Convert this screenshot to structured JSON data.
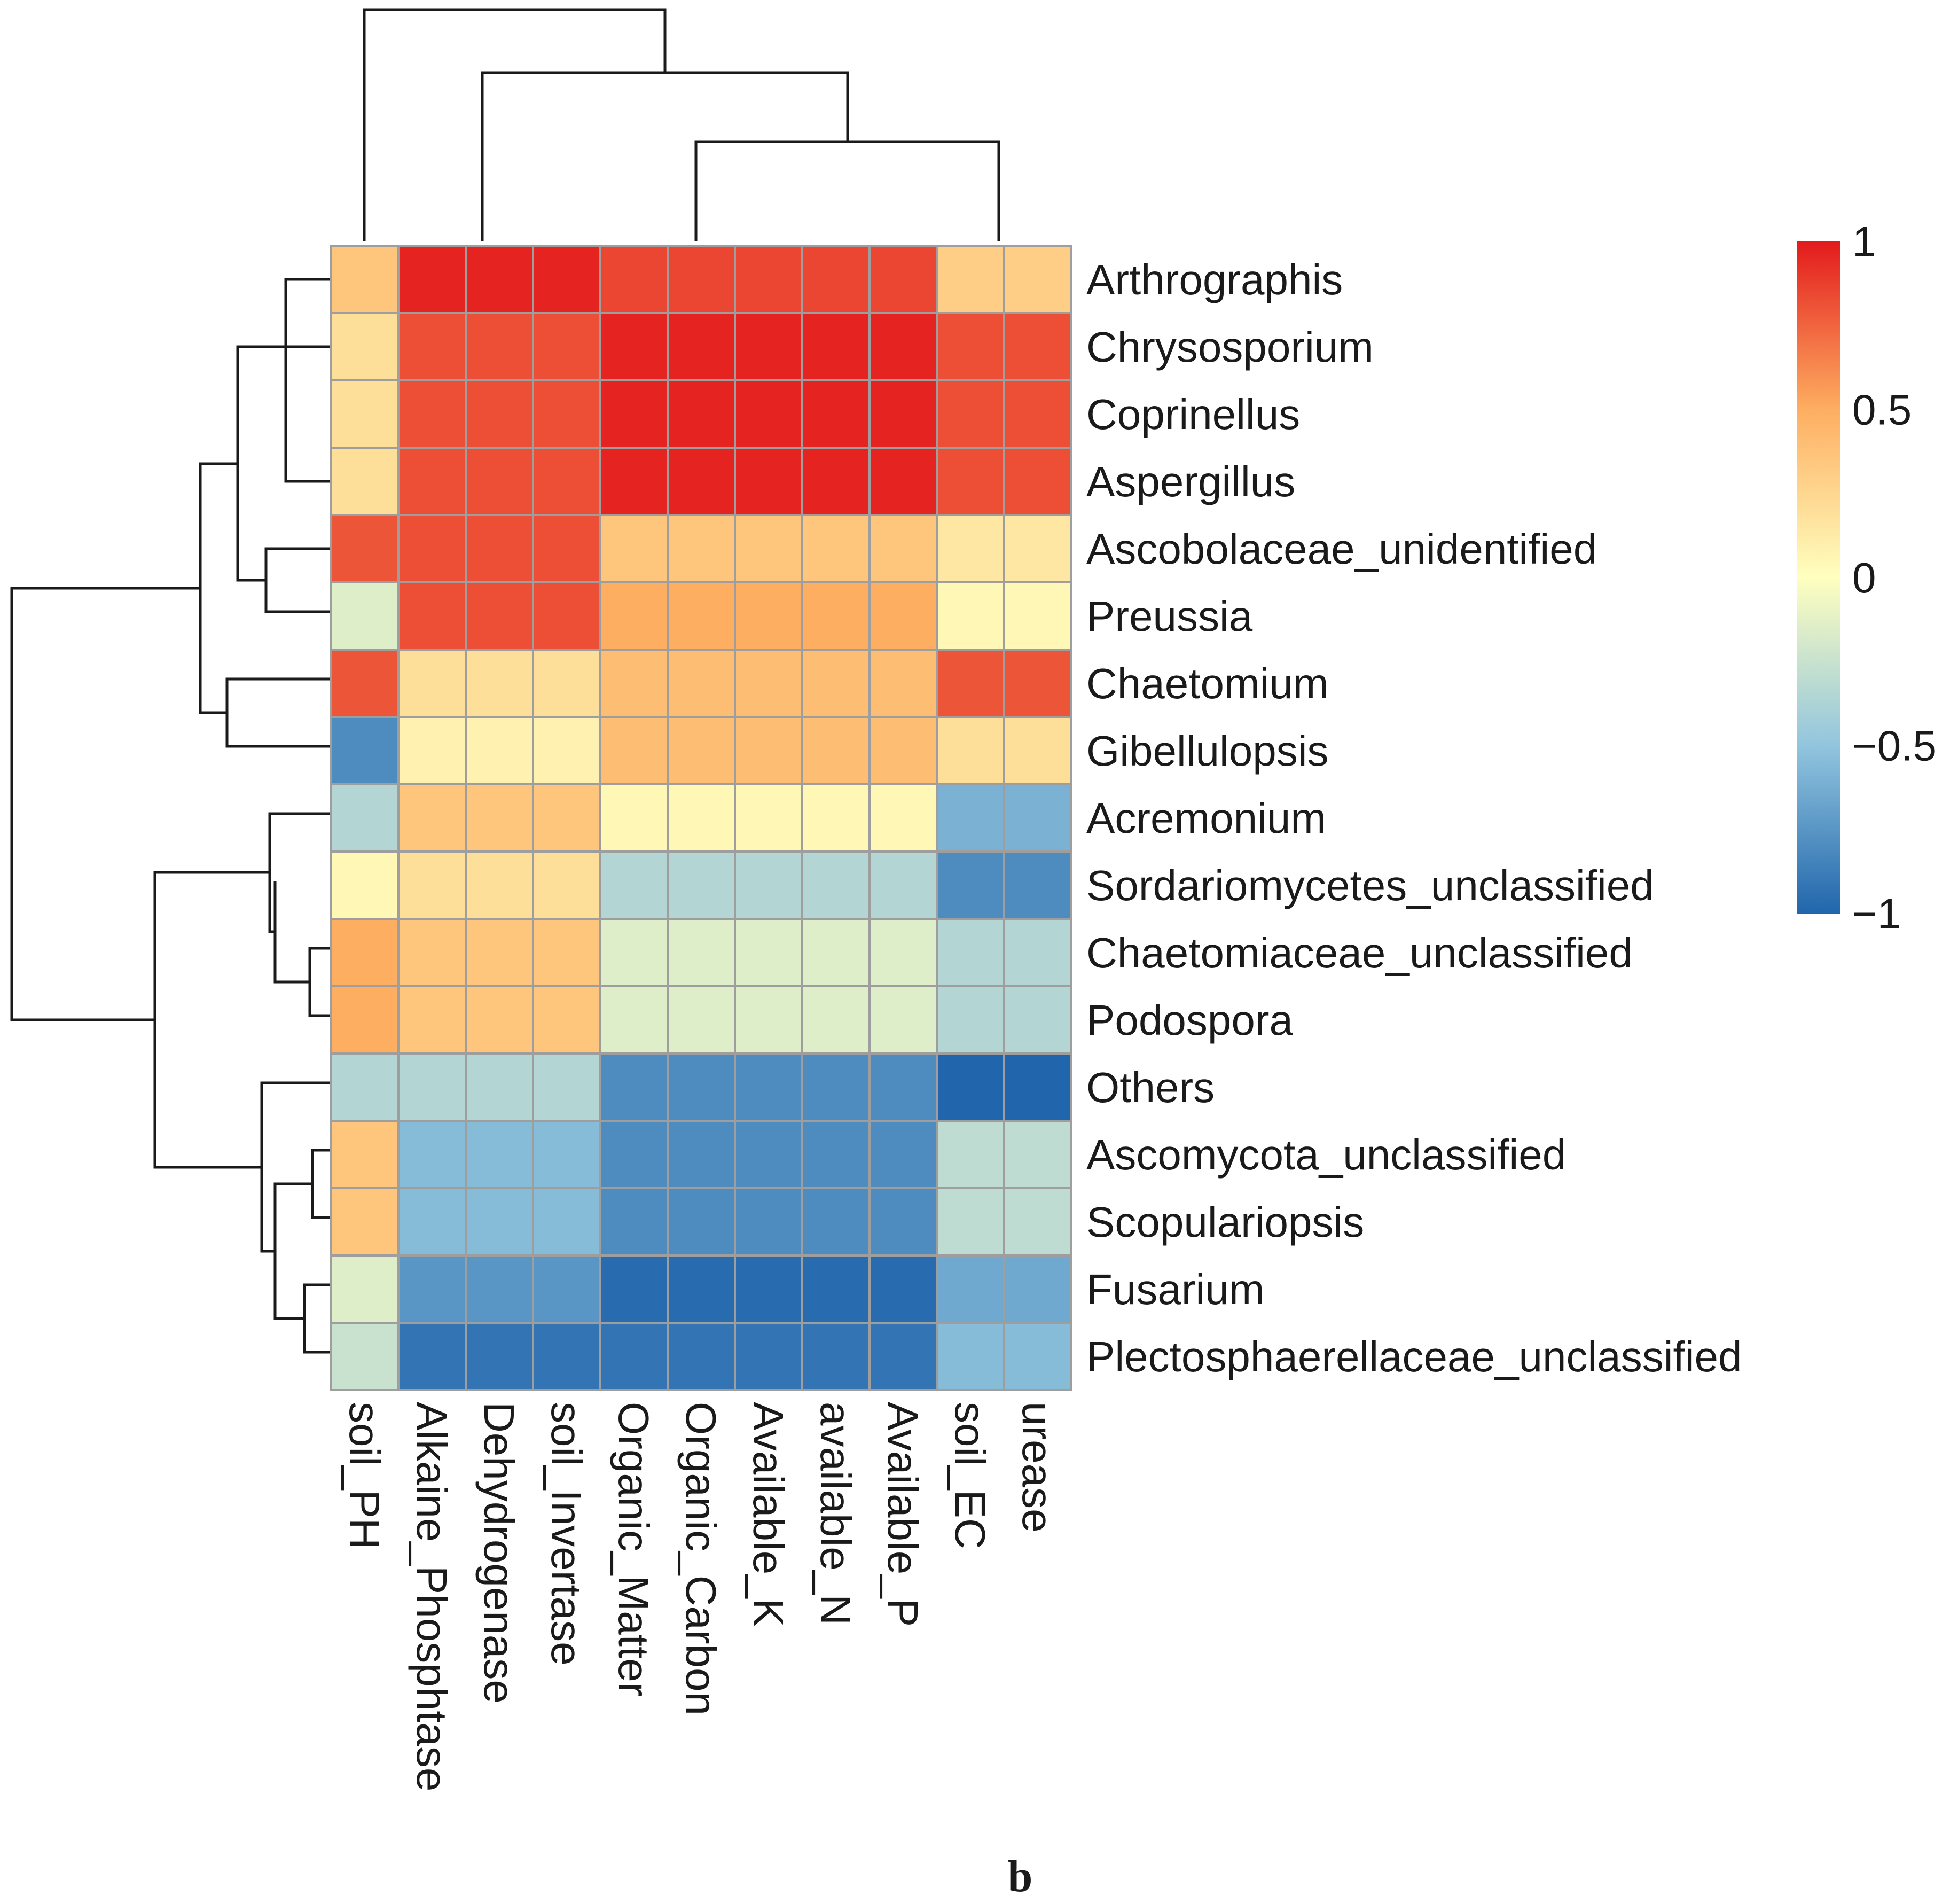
{
  "chart_data": {
    "type": "heatmap",
    "panel_label": "b",
    "columns": [
      "soil_PH",
      "Alkaine_Phosphtase",
      "Dehydrogenase",
      "soil_Invertase",
      "Organic_Matter",
      "Organic_Carbon",
      "Available_K",
      "available_N",
      "Available_P",
      "soil_EC",
      "urease"
    ],
    "rows": [
      "Arthrographis",
      "Chrysosporium",
      "Coprinellus",
      "Aspergillus",
      "Ascobolaceae_unidentified",
      "Preussia",
      "Chaetomium",
      "Gibellulopsis",
      "Acremonium",
      "Sordariomycetes_unclassified",
      "Chaetomiaceae_unclassified",
      "Podospora",
      "Others",
      "Ascomycota_unclassified",
      "Scopulariopsis",
      "Fusarium",
      "Plectosphaerellaceae_unclassified"
    ],
    "values": [
      [
        0.35,
        0.97,
        0.97,
        0.97,
        0.85,
        0.85,
        0.85,
        0.85,
        0.85,
        0.3,
        0.3
      ],
      [
        0.2,
        0.82,
        0.82,
        0.82,
        0.97,
        0.97,
        0.97,
        0.97,
        0.97,
        0.82,
        0.82
      ],
      [
        0.2,
        0.82,
        0.82,
        0.82,
        0.97,
        0.97,
        0.97,
        0.97,
        0.97,
        0.82,
        0.82
      ],
      [
        0.2,
        0.82,
        0.82,
        0.82,
        0.97,
        0.97,
        0.97,
        0.97,
        0.97,
        0.82,
        0.82
      ],
      [
        0.8,
        0.82,
        0.82,
        0.82,
        0.35,
        0.35,
        0.35,
        0.35,
        0.35,
        0.15,
        0.15
      ],
      [
        -0.15,
        0.82,
        0.82,
        0.82,
        0.5,
        0.5,
        0.5,
        0.5,
        0.5,
        0.05,
        0.05
      ],
      [
        0.8,
        0.2,
        0.2,
        0.2,
        0.4,
        0.4,
        0.4,
        0.4,
        0.4,
        0.8,
        0.8
      ],
      [
        -0.8,
        0.08,
        0.08,
        0.08,
        0.4,
        0.4,
        0.4,
        0.4,
        0.4,
        0.2,
        0.2
      ],
      [
        -0.35,
        0.35,
        0.35,
        0.35,
        0.05,
        0.05,
        0.05,
        0.05,
        0.05,
        -0.6,
        -0.6
      ],
      [
        0.05,
        0.2,
        0.2,
        0.2,
        -0.35,
        -0.35,
        -0.35,
        -0.35,
        -0.35,
        -0.8,
        -0.8
      ],
      [
        0.5,
        0.35,
        0.35,
        0.35,
        -0.15,
        -0.15,
        -0.15,
        -0.15,
        -0.15,
        -0.35,
        -0.35
      ],
      [
        0.5,
        0.35,
        0.35,
        0.35,
        -0.15,
        -0.15,
        -0.15,
        -0.15,
        -0.15,
        -0.35,
        -0.35
      ],
      [
        -0.35,
        -0.35,
        -0.35,
        -0.35,
        -0.8,
        -0.8,
        -0.8,
        -0.8,
        -0.8,
        -1.0,
        -1.0
      ],
      [
        0.35,
        -0.55,
        -0.55,
        -0.55,
        -0.8,
        -0.8,
        -0.8,
        -0.8,
        -0.8,
        -0.3,
        -0.3
      ],
      [
        0.35,
        -0.55,
        -0.55,
        -0.55,
        -0.8,
        -0.8,
        -0.8,
        -0.8,
        -0.8,
        -0.3,
        -0.3
      ],
      [
        -0.15,
        -0.75,
        -0.75,
        -0.75,
        -0.97,
        -0.97,
        -0.97,
        -0.97,
        -0.97,
        -0.65,
        -0.65
      ],
      [
        -0.25,
        -0.92,
        -0.92,
        -0.92,
        -0.92,
        -0.92,
        -0.92,
        -0.92,
        -0.92,
        -0.55,
        -0.55
      ]
    ],
    "color_scale": {
      "min": -1,
      "max": 1,
      "stops": [
        {
          "value": -1,
          "color": "#2166ac"
        },
        {
          "value": -0.5,
          "color": "#92c5de"
        },
        {
          "value": 0,
          "color": "#ffffbf"
        },
        {
          "value": 0.5,
          "color": "#fdae61"
        },
        {
          "value": 1,
          "color": "#e31a1c"
        }
      ],
      "ticks": [
        {
          "value": 1,
          "label": "1"
        },
        {
          "value": 0.5,
          "label": "0.5"
        },
        {
          "value": 0,
          "label": "0"
        },
        {
          "value": -0.5,
          "label": "−0.5"
        },
        {
          "value": -1,
          "label": "−1"
        }
      ]
    },
    "cell_border_color": "#9e9e9e"
  }
}
